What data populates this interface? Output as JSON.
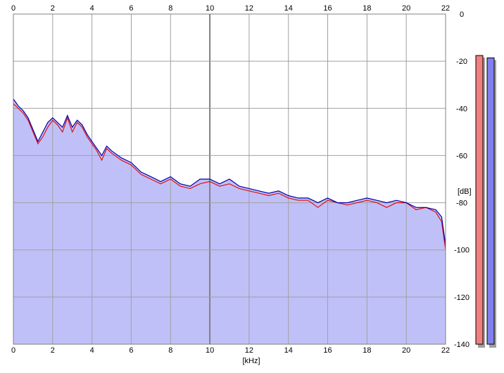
{
  "chart_data": {
    "type": "area",
    "x_unit_label": "[kHz]",
    "y_unit_label": "[dB]",
    "xlim": [
      0,
      22
    ],
    "ylim": [
      -140,
      0
    ],
    "x_ticks": [
      "0",
      "2",
      "4",
      "6",
      "8",
      "10",
      "12",
      "14",
      "16",
      "18",
      "20",
      "22"
    ],
    "y_ticks": [
      "0",
      "-20",
      "-40",
      "-60",
      "-80",
      "-100",
      "-120",
      "-140"
    ],
    "grid": true,
    "series": [
      {
        "color": "#e01010",
        "x": [
          0,
          0.25,
          0.5,
          0.75,
          1.0,
          1.25,
          1.5,
          1.75,
          2.0,
          2.25,
          2.5,
          2.75,
          3.0,
          3.25,
          3.5,
          3.75,
          4.0,
          4.25,
          4.5,
          4.75,
          5.0,
          5.5,
          6.0,
          6.5,
          7.0,
          7.5,
          8.0,
          8.5,
          9.0,
          9.5,
          10.0,
          10.5,
          11.0,
          11.5,
          12.0,
          12.5,
          13.0,
          13.5,
          14.0,
          14.5,
          15.0,
          15.5,
          16.0,
          16.5,
          17.0,
          17.5,
          18.0,
          18.5,
          19.0,
          19.5,
          20.0,
          20.5,
          21.0,
          21.5,
          21.8,
          22.0
        ],
        "values": [
          -38,
          -40,
          -42,
          -45,
          -50,
          -55,
          -52,
          -48,
          -45,
          -47,
          -50,
          -44,
          -50,
          -46,
          -48,
          -52,
          -55,
          -58,
          -62,
          -57,
          -59,
          -62,
          -64,
          -68,
          -70,
          -72,
          -70,
          -73,
          -74,
          -72,
          -71,
          -73,
          -72,
          -74,
          -75,
          -76,
          -77,
          -76,
          -78,
          -79,
          -79,
          -82,
          -79,
          -80,
          -81,
          -80,
          -79,
          -80,
          -82,
          -80,
          -80,
          -83,
          -82,
          -84,
          -88,
          -100
        ]
      },
      {
        "color": "#0000b0",
        "x": [
          0,
          0.25,
          0.5,
          0.75,
          1.0,
          1.25,
          1.5,
          1.75,
          2.0,
          2.25,
          2.5,
          2.75,
          3.0,
          3.25,
          3.5,
          3.75,
          4.0,
          4.25,
          4.5,
          4.75,
          5.0,
          5.5,
          6.0,
          6.5,
          7.0,
          7.5,
          8.0,
          8.5,
          9.0,
          9.5,
          10.0,
          10.5,
          11.0,
          11.5,
          12.0,
          12.5,
          13.0,
          13.5,
          14.0,
          14.5,
          15.0,
          15.5,
          16.0,
          16.5,
          17.0,
          17.5,
          18.0,
          18.5,
          19.0,
          19.5,
          20.0,
          20.5,
          21.0,
          21.5,
          21.8,
          22.0
        ],
        "values": [
          -36,
          -39,
          -41,
          -44,
          -49,
          -54,
          -50,
          -46,
          -44,
          -46,
          -48,
          -43,
          -48,
          -45,
          -47,
          -51,
          -54,
          -57,
          -60,
          -56,
          -58,
          -61,
          -63,
          -67,
          -69,
          -71,
          -69,
          -72,
          -73,
          -70,
          -70,
          -72,
          -70,
          -73,
          -74,
          -75,
          -76,
          -75,
          -77,
          -78,
          -78,
          -80,
          -78,
          -80,
          -80,
          -79,
          -78,
          -79,
          -80,
          -79,
          -80,
          -82,
          -82,
          -83,
          -86,
          -98
        ]
      }
    ],
    "level_meters": [
      {
        "color": "#f08080",
        "value_db": -14
      },
      {
        "color": "#8080f0",
        "value_db": -15
      }
    ],
    "colors": {
      "fill": "#c0c0f8",
      "grid": "#a0a0a0",
      "grid_major": "#808080"
    }
  }
}
